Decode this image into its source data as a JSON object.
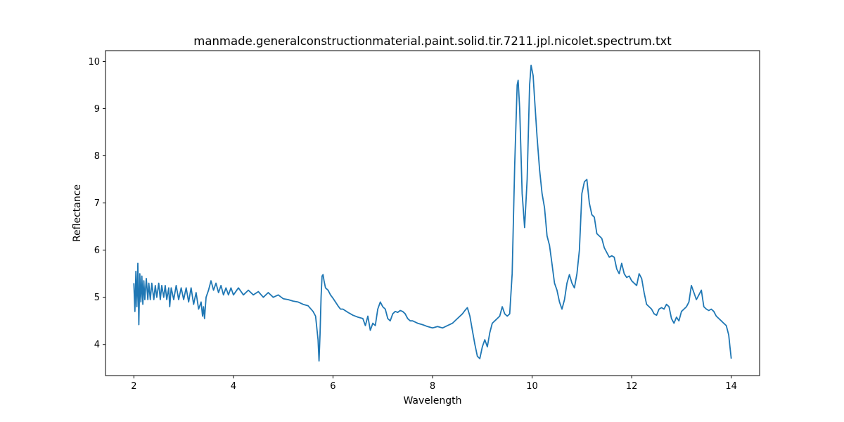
{
  "chart_data": {
    "type": "line",
    "title": "manmade.generalconstructionmaterial.paint.solid.tir.7211.jpl.nicolet.spectrum.txt",
    "xlabel": "Wavelength",
    "ylabel": "Reflectance",
    "xlim": [
      1.43,
      14.57
    ],
    "ylim": [
      3.34,
      10.23
    ],
    "xticks": [
      2,
      4,
      6,
      8,
      10,
      12,
      14
    ],
    "yticks": [
      4,
      5,
      6,
      7,
      8,
      9,
      10
    ],
    "grid": false,
    "series": [
      {
        "color": "#1f77b4",
        "points": [
          [
            2.0,
            5.3
          ],
          [
            2.02,
            4.7
          ],
          [
            2.04,
            5.55
          ],
          [
            2.06,
            4.8
          ],
          [
            2.08,
            5.72
          ],
          [
            2.1,
            4.42
          ],
          [
            2.12,
            5.5
          ],
          [
            2.14,
            4.9
          ],
          [
            2.16,
            5.45
          ],
          [
            2.18,
            4.85
          ],
          [
            2.2,
            5.35
          ],
          [
            2.22,
            4.95
          ],
          [
            2.25,
            5.4
          ],
          [
            2.28,
            4.95
          ],
          [
            2.3,
            5.3
          ],
          [
            2.33,
            4.95
          ],
          [
            2.36,
            5.3
          ],
          [
            2.4,
            4.95
          ],
          [
            2.43,
            5.25
          ],
          [
            2.46,
            5.0
          ],
          [
            2.5,
            5.3
          ],
          [
            2.53,
            4.95
          ],
          [
            2.56,
            5.25
          ],
          [
            2.6,
            5.0
          ],
          [
            2.63,
            5.25
          ],
          [
            2.66,
            4.95
          ],
          [
            2.7,
            5.2
          ],
          [
            2.72,
            4.8
          ],
          [
            2.75,
            5.2
          ],
          [
            2.8,
            4.95
          ],
          [
            2.85,
            5.25
          ],
          [
            2.9,
            4.95
          ],
          [
            2.95,
            5.2
          ],
          [
            3.0,
            4.95
          ],
          [
            3.05,
            5.2
          ],
          [
            3.1,
            4.9
          ],
          [
            3.15,
            5.2
          ],
          [
            3.2,
            4.85
          ],
          [
            3.25,
            5.1
          ],
          [
            3.3,
            4.75
          ],
          [
            3.35,
            4.9
          ],
          [
            3.38,
            4.6
          ],
          [
            3.4,
            4.8
          ],
          [
            3.42,
            4.55
          ],
          [
            3.45,
            5.0
          ],
          [
            3.5,
            5.15
          ],
          [
            3.55,
            5.35
          ],
          [
            3.6,
            5.15
          ],
          [
            3.65,
            5.3
          ],
          [
            3.7,
            5.1
          ],
          [
            3.75,
            5.25
          ],
          [
            3.8,
            5.05
          ],
          [
            3.85,
            5.2
          ],
          [
            3.9,
            5.05
          ],
          [
            3.95,
            5.2
          ],
          [
            4.0,
            5.05
          ],
          [
            4.1,
            5.2
          ],
          [
            4.2,
            5.05
          ],
          [
            4.3,
            5.15
          ],
          [
            4.4,
            5.05
          ],
          [
            4.5,
            5.12
          ],
          [
            4.6,
            5.0
          ],
          [
            4.7,
            5.1
          ],
          [
            4.8,
            5.0
          ],
          [
            4.9,
            5.05
          ],
          [
            5.0,
            4.97
          ],
          [
            5.1,
            4.95
          ],
          [
            5.2,
            4.92
          ],
          [
            5.3,
            4.9
          ],
          [
            5.4,
            4.85
          ],
          [
            5.5,
            4.82
          ],
          [
            5.6,
            4.7
          ],
          [
            5.65,
            4.6
          ],
          [
            5.68,
            4.3
          ],
          [
            5.7,
            4.1
          ],
          [
            5.72,
            3.65
          ],
          [
            5.74,
            4.2
          ],
          [
            5.76,
            5.0
          ],
          [
            5.78,
            5.45
          ],
          [
            5.8,
            5.48
          ],
          [
            5.82,
            5.35
          ],
          [
            5.85,
            5.2
          ],
          [
            5.9,
            5.15
          ],
          [
            5.95,
            5.05
          ],
          [
            6.0,
            4.98
          ],
          [
            6.05,
            4.9
          ],
          [
            6.1,
            4.82
          ],
          [
            6.15,
            4.75
          ],
          [
            6.2,
            4.75
          ],
          [
            6.3,
            4.68
          ],
          [
            6.4,
            4.62
          ],
          [
            6.5,
            4.58
          ],
          [
            6.6,
            4.55
          ],
          [
            6.65,
            4.4
          ],
          [
            6.7,
            4.6
          ],
          [
            6.75,
            4.3
          ],
          [
            6.8,
            4.45
          ],
          [
            6.85,
            4.4
          ],
          [
            6.9,
            4.75
          ],
          [
            6.95,
            4.9
          ],
          [
            7.0,
            4.8
          ],
          [
            7.05,
            4.75
          ],
          [
            7.1,
            4.55
          ],
          [
            7.15,
            4.5
          ],
          [
            7.2,
            4.65
          ],
          [
            7.25,
            4.7
          ],
          [
            7.3,
            4.68
          ],
          [
            7.35,
            4.72
          ],
          [
            7.4,
            4.7
          ],
          [
            7.45,
            4.65
          ],
          [
            7.5,
            4.55
          ],
          [
            7.55,
            4.5
          ],
          [
            7.6,
            4.5
          ],
          [
            7.7,
            4.45
          ],
          [
            7.8,
            4.42
          ],
          [
            7.9,
            4.38
          ],
          [
            8.0,
            4.35
          ],
          [
            8.1,
            4.38
          ],
          [
            8.2,
            4.35
          ],
          [
            8.3,
            4.4
          ],
          [
            8.4,
            4.45
          ],
          [
            8.5,
            4.55
          ],
          [
            8.6,
            4.65
          ],
          [
            8.65,
            4.72
          ],
          [
            8.7,
            4.78
          ],
          [
            8.75,
            4.6
          ],
          [
            8.8,
            4.3
          ],
          [
            8.85,
            4.0
          ],
          [
            8.9,
            3.75
          ],
          [
            8.95,
            3.7
          ],
          [
            9.0,
            3.95
          ],
          [
            9.05,
            4.1
          ],
          [
            9.1,
            3.95
          ],
          [
            9.15,
            4.25
          ],
          [
            9.2,
            4.45
          ],
          [
            9.25,
            4.5
          ],
          [
            9.3,
            4.55
          ],
          [
            9.35,
            4.6
          ],
          [
            9.4,
            4.8
          ],
          [
            9.45,
            4.65
          ],
          [
            9.5,
            4.6
          ],
          [
            9.55,
            4.65
          ],
          [
            9.6,
            5.5
          ],
          [
            9.65,
            7.8
          ],
          [
            9.7,
            9.5
          ],
          [
            9.72,
            9.6
          ],
          [
            9.75,
            9.0
          ],
          [
            9.8,
            7.2
          ],
          [
            9.85,
            6.48
          ],
          [
            9.9,
            7.5
          ],
          [
            9.95,
            9.5
          ],
          [
            9.98,
            9.92
          ],
          [
            10.02,
            9.7
          ],
          [
            10.05,
            9.2
          ],
          [
            10.1,
            8.4
          ],
          [
            10.15,
            7.7
          ],
          [
            10.2,
            7.2
          ],
          [
            10.25,
            6.9
          ],
          [
            10.3,
            6.3
          ],
          [
            10.35,
            6.1
          ],
          [
            10.4,
            5.7
          ],
          [
            10.45,
            5.3
          ],
          [
            10.5,
            5.15
          ],
          [
            10.55,
            4.9
          ],
          [
            10.6,
            4.75
          ],
          [
            10.65,
            4.95
          ],
          [
            10.7,
            5.3
          ],
          [
            10.75,
            5.48
          ],
          [
            10.8,
            5.3
          ],
          [
            10.85,
            5.2
          ],
          [
            10.9,
            5.5
          ],
          [
            10.95,
            6.0
          ],
          [
            11.0,
            7.2
          ],
          [
            11.05,
            7.45
          ],
          [
            11.1,
            7.5
          ],
          [
            11.15,
            7.0
          ],
          [
            11.2,
            6.75
          ],
          [
            11.25,
            6.7
          ],
          [
            11.3,
            6.35
          ],
          [
            11.35,
            6.3
          ],
          [
            11.4,
            6.25
          ],
          [
            11.45,
            6.05
          ],
          [
            11.5,
            5.95
          ],
          [
            11.55,
            5.85
          ],
          [
            11.6,
            5.88
          ],
          [
            11.65,
            5.85
          ],
          [
            11.7,
            5.6
          ],
          [
            11.75,
            5.5
          ],
          [
            11.8,
            5.72
          ],
          [
            11.85,
            5.5
          ],
          [
            11.9,
            5.42
          ],
          [
            11.95,
            5.45
          ],
          [
            12.0,
            5.35
          ],
          [
            12.05,
            5.3
          ],
          [
            12.1,
            5.25
          ],
          [
            12.15,
            5.5
          ],
          [
            12.2,
            5.4
          ],
          [
            12.25,
            5.1
          ],
          [
            12.3,
            4.85
          ],
          [
            12.35,
            4.8
          ],
          [
            12.4,
            4.75
          ],
          [
            12.45,
            4.65
          ],
          [
            12.5,
            4.62
          ],
          [
            12.55,
            4.75
          ],
          [
            12.6,
            4.78
          ],
          [
            12.65,
            4.75
          ],
          [
            12.7,
            4.85
          ],
          [
            12.75,
            4.8
          ],
          [
            12.8,
            4.55
          ],
          [
            12.85,
            4.45
          ],
          [
            12.9,
            4.58
          ],
          [
            12.95,
            4.5
          ],
          [
            13.0,
            4.7
          ],
          [
            13.05,
            4.75
          ],
          [
            13.1,
            4.8
          ],
          [
            13.15,
            4.9
          ],
          [
            13.2,
            5.25
          ],
          [
            13.25,
            5.1
          ],
          [
            13.3,
            4.95
          ],
          [
            13.35,
            5.05
          ],
          [
            13.4,
            5.15
          ],
          [
            13.45,
            4.8
          ],
          [
            13.5,
            4.75
          ],
          [
            13.55,
            4.72
          ],
          [
            13.6,
            4.75
          ],
          [
            13.65,
            4.7
          ],
          [
            13.7,
            4.6
          ],
          [
            13.75,
            4.55
          ],
          [
            13.8,
            4.5
          ],
          [
            13.85,
            4.45
          ],
          [
            13.9,
            4.4
          ],
          [
            13.95,
            4.2
          ],
          [
            13.98,
            3.9
          ],
          [
            14.0,
            3.7
          ]
        ]
      }
    ]
  }
}
